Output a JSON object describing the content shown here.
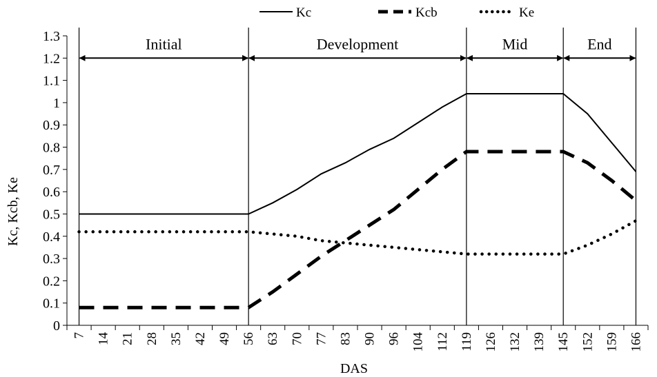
{
  "chart_data": {
    "type": "line",
    "title": "",
    "xlabel": "DAS",
    "ylabel": "Kc, Kcb, Ke",
    "ylim": [
      0,
      1.3
    ],
    "yticks": [
      "0",
      "0.1",
      "0.2",
      "0.3",
      "0.4",
      "0.5",
      "0.6",
      "0.7",
      "0.8",
      "0.9",
      "1",
      "1.1",
      "1.2",
      "1.3"
    ],
    "categories": [
      "7",
      "14",
      "21",
      "28",
      "35",
      "42",
      "49",
      "56",
      "63",
      "70",
      "77",
      "83",
      "90",
      "96",
      "104",
      "112",
      "119",
      "126",
      "132",
      "139",
      "145",
      "152",
      "159",
      "166"
    ],
    "series": [
      {
        "name": "Kc",
        "style": "solid",
        "values": [
          0.5,
          0.5,
          0.5,
          0.5,
          0.5,
          0.5,
          0.5,
          0.5,
          0.55,
          0.61,
          0.68,
          0.73,
          0.79,
          0.84,
          0.91,
          0.98,
          1.04,
          1.04,
          1.04,
          1.04,
          1.04,
          0.95,
          0.82,
          0.69
        ]
      },
      {
        "name": "Kcb",
        "style": "dashed",
        "values": [
          0.08,
          0.08,
          0.08,
          0.08,
          0.08,
          0.08,
          0.08,
          0.08,
          0.15,
          0.23,
          0.31,
          0.38,
          0.45,
          0.52,
          0.61,
          0.7,
          0.78,
          0.78,
          0.78,
          0.78,
          0.78,
          0.73,
          0.65,
          0.56
        ]
      },
      {
        "name": "Ke",
        "style": "dotted",
        "values": [
          0.42,
          0.42,
          0.42,
          0.42,
          0.42,
          0.42,
          0.42,
          0.42,
          0.41,
          0.4,
          0.38,
          0.37,
          0.36,
          0.35,
          0.34,
          0.33,
          0.32,
          0.32,
          0.32,
          0.32,
          0.32,
          0.36,
          0.41,
          0.47
        ]
      }
    ],
    "stages": [
      {
        "label": "Initial",
        "from": "7",
        "to": "56"
      },
      {
        "label": "Development",
        "from": "56",
        "to": "119"
      },
      {
        "label": "Mid",
        "from": "119",
        "to": "145"
      },
      {
        "label": "End",
        "from": "145",
        "to": "166"
      }
    ],
    "legend_position": "top-center",
    "grid": false
  }
}
